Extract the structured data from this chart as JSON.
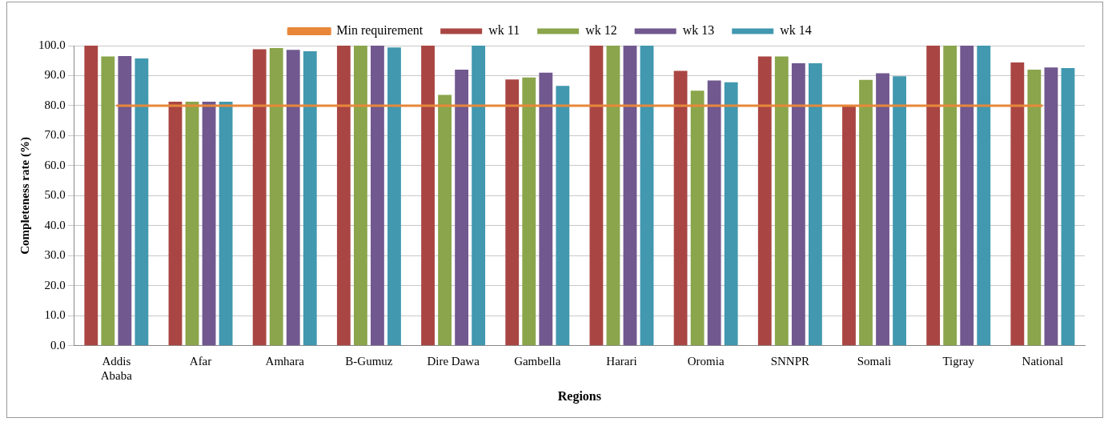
{
  "chart_data": {
    "type": "bar",
    "xlabel": "Regions",
    "ylabel": "Completeness rate (%)",
    "categories": [
      "Addis Ababa",
      "Afar",
      "Amhara",
      "B-Gumuz",
      "Dire Dawa",
      "Gambella",
      "Harari",
      "Oromia",
      "SNNPR",
      "Somali",
      "Tigray",
      "National"
    ],
    "series": [
      {
        "name": "wk 11",
        "color": "#a94643",
        "values": [
          100,
          81.3,
          98.8,
          100,
          100,
          88.7,
          100,
          91.6,
          96.4,
          79.7,
          100,
          94.4
        ]
      },
      {
        "name": "wk 12",
        "color": "#8aa54b",
        "values": [
          96.4,
          81.3,
          99.2,
          100,
          83.6,
          89.4,
          100,
          85.0,
          96.4,
          88.6,
          100,
          92.0
        ]
      },
      {
        "name": "wk 13",
        "color": "#71588f",
        "values": [
          96.5,
          81.3,
          98.6,
          100,
          92.0,
          91.0,
          100,
          88.4,
          94.1,
          90.8,
          100,
          92.7
        ]
      },
      {
        "name": "wk 14",
        "color": "#4198af",
        "values": [
          95.7,
          81.3,
          98.1,
          99.4,
          100,
          86.6,
          100,
          87.8,
          94.1,
          89.8,
          100,
          92.5
        ]
      },
      {
        "name": "Min requirement",
        "type": "line",
        "color": "#e8873a",
        "marker": "none",
        "values": [
          80,
          80,
          80,
          80,
          80,
          80,
          80,
          80,
          80,
          80,
          80,
          80
        ]
      }
    ],
    "ylim": [
      0,
      100
    ],
    "yticks": [
      {
        "value": 0,
        "label": "0.0"
      },
      {
        "value": 10,
        "label": "10.0"
      },
      {
        "value": 20,
        "label": "20.0"
      },
      {
        "value": 30,
        "label": "30.0"
      },
      {
        "value": 40,
        "label": "40.0"
      },
      {
        "value": 50,
        "label": "50.0"
      },
      {
        "value": 60,
        "label": "60.0"
      },
      {
        "value": 70,
        "label": "70.0"
      },
      {
        "value": 80,
        "label": "80.0"
      },
      {
        "value": 90,
        "label": "90.0"
      },
      {
        "value": 100,
        "label": "100.0"
      }
    ],
    "grid": "y",
    "legend": "top"
  }
}
